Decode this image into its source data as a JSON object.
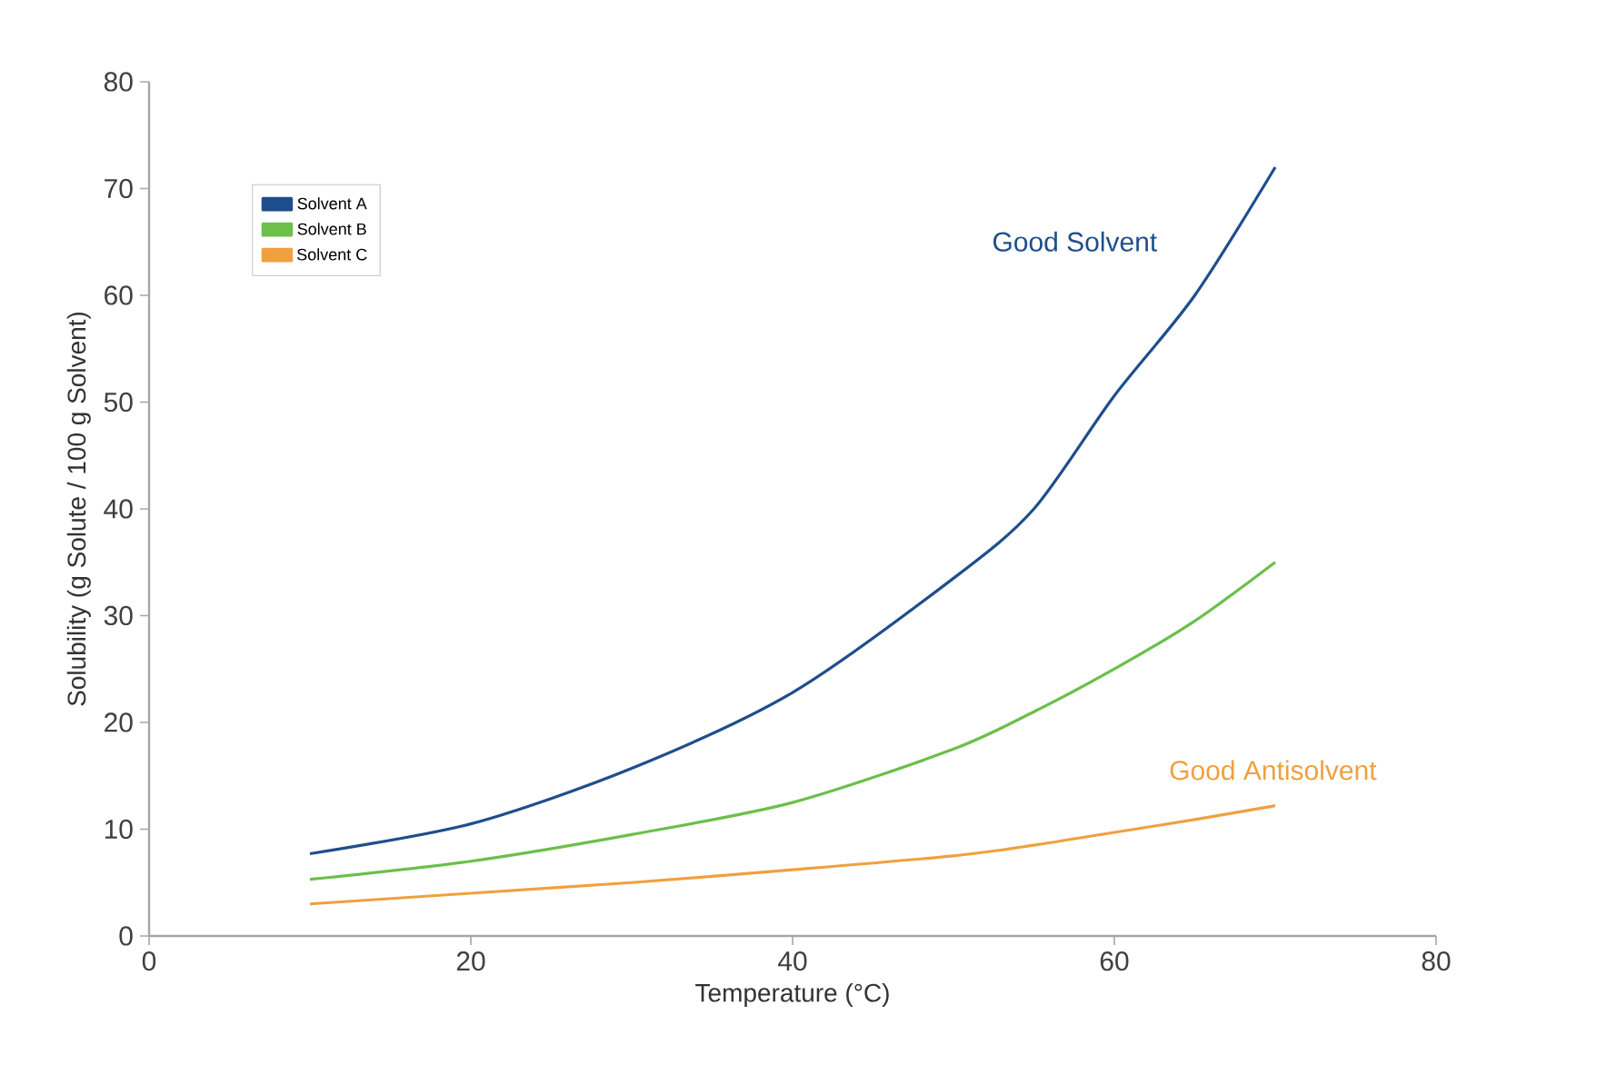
{
  "chart_data": {
    "type": "line",
    "xlabel": "Temperature (°C)",
    "ylabel": "Solubility (g Solute / 100 g Solvent)",
    "x": [
      10,
      20,
      30,
      40,
      50,
      55,
      60,
      65,
      70
    ],
    "series": [
      {
        "name": "Solvent A",
        "color": "#1f4e8c",
        "values": [
          7.7,
          10.5,
          15.7,
          22.8,
          33.5,
          40,
          50.6,
          60,
          72
        ]
      },
      {
        "name": "Solvent B",
        "color": "#6cbf4a",
        "values": [
          5.3,
          7,
          9.5,
          12.5,
          17.5,
          21,
          25,
          29.5,
          35
        ]
      },
      {
        "name": "Solvent C",
        "color": "#f0a040",
        "values": [
          3,
          4,
          5,
          6.2,
          7.5,
          8.5,
          9.7,
          10.9,
          12.2
        ]
      }
    ],
    "annotations": [
      "Good Solvent",
      "Good Antisolvent"
    ],
    "xlim": [
      0,
      80
    ],
    "ylim": [
      0,
      80
    ],
    "xticks": [
      0,
      20,
      40,
      60,
      80
    ],
    "yticks": [
      0,
      10,
      20,
      30,
      40,
      50,
      60,
      70,
      80
    ],
    "grid": false,
    "legend": "top left",
    "marker": "none",
    "line_style": "solid"
  }
}
